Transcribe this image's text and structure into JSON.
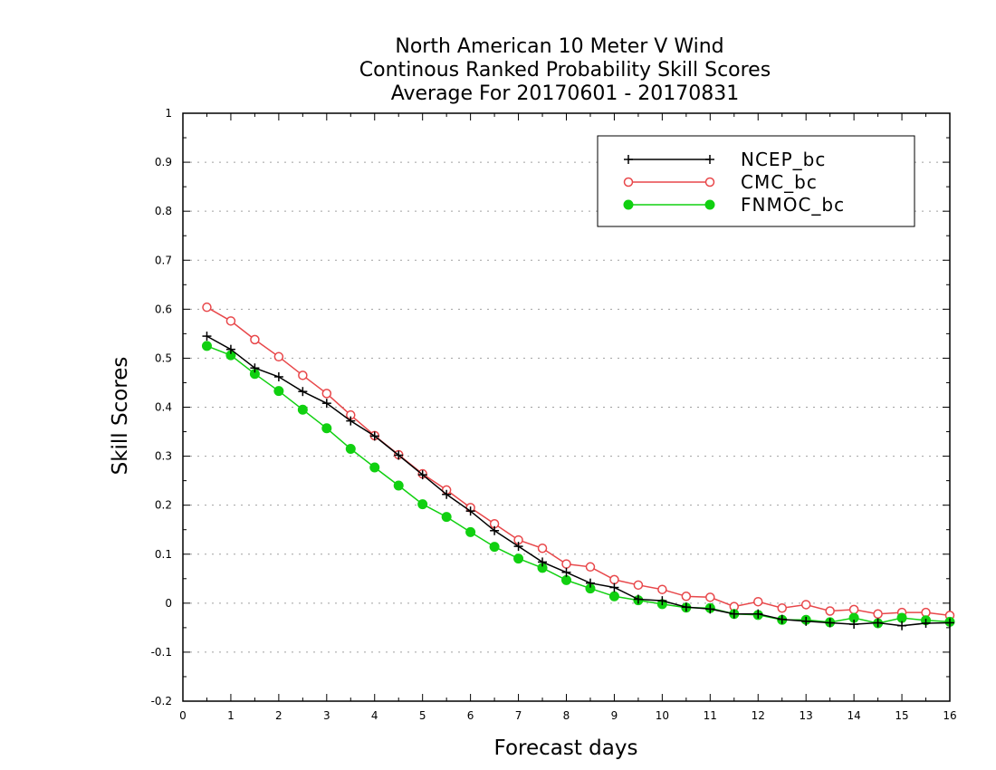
{
  "chart_data": {
    "type": "line",
    "title_lines": [
      "North American 10 Meter V Wind",
      "Continous Ranked Probability Skill Scores",
      "Average For 20170601 - 20170831"
    ],
    "xlabel": "Forecast days",
    "ylabel": "Skill Scores",
    "xlim": [
      0,
      16
    ],
    "ylim": [
      -0.2,
      1
    ],
    "x_ticks": [
      0,
      1,
      2,
      3,
      4,
      5,
      6,
      7,
      8,
      9,
      10,
      11,
      12,
      13,
      14,
      15,
      16
    ],
    "y_ticks": [
      -0.2,
      -0.1,
      0,
      0.1,
      0.2,
      0.3,
      0.4,
      0.5,
      0.6,
      0.7,
      0.8,
      0.9,
      1
    ],
    "y_tick_labels": [
      "-0.2",
      "-0.1",
      "0",
      "0.1",
      "0.2",
      "0.3",
      "0.4",
      "0.5",
      "0.6",
      "0.7",
      "0.8",
      "0.9",
      "1"
    ],
    "grid": "horizontal dotted",
    "legend_position": "top-right",
    "x": [
      0.5,
      1.0,
      1.5,
      2.0,
      2.5,
      3.0,
      3.5,
      4.0,
      4.5,
      5.0,
      5.5,
      6.0,
      6.5,
      7.0,
      7.5,
      8.0,
      8.5,
      9.0,
      9.5,
      10.0,
      10.5,
      11.0,
      11.5,
      12.0,
      12.5,
      13.0,
      13.5,
      14.0,
      14.5,
      15.0,
      15.5,
      16.0
    ],
    "series": [
      {
        "name": "NCEP_bc",
        "color": "#000000",
        "marker": "plus",
        "values": [
          0.545,
          0.518,
          0.48,
          0.462,
          0.432,
          0.408,
          0.372,
          0.341,
          0.302,
          0.262,
          0.222,
          0.188,
          0.148,
          0.116,
          0.084,
          0.063,
          0.041,
          0.032,
          0.008,
          0.005,
          -0.008,
          -0.012,
          -0.022,
          -0.022,
          -0.033,
          -0.037,
          -0.04,
          -0.043,
          -0.04,
          -0.046,
          -0.041,
          -0.04
        ]
      },
      {
        "name": "CMC_bc",
        "color": "#e8474a",
        "marker": "open-circle",
        "values": [
          0.604,
          0.576,
          0.538,
          0.503,
          0.465,
          0.428,
          0.384,
          0.342,
          0.303,
          0.264,
          0.231,
          0.195,
          0.162,
          0.129,
          0.112,
          0.08,
          0.074,
          0.048,
          0.037,
          0.028,
          0.014,
          0.012,
          -0.007,
          0.003,
          -0.01,
          -0.003,
          -0.016,
          -0.013,
          -0.022,
          -0.019,
          -0.019,
          -0.025
        ]
      },
      {
        "name": "FNMOC_bc",
        "color": "#10d010",
        "marker": "filled-circle",
        "values": [
          0.525,
          0.506,
          0.468,
          0.433,
          0.395,
          0.357,
          0.315,
          0.277,
          0.24,
          0.202,
          0.176,
          0.145,
          0.115,
          0.091,
          0.072,
          0.047,
          0.03,
          0.014,
          0.006,
          -0.002,
          -0.009,
          -0.01,
          -0.022,
          -0.024,
          -0.034,
          -0.034,
          -0.039,
          -0.03,
          -0.041,
          -0.03,
          -0.035,
          -0.038
        ]
      }
    ]
  }
}
